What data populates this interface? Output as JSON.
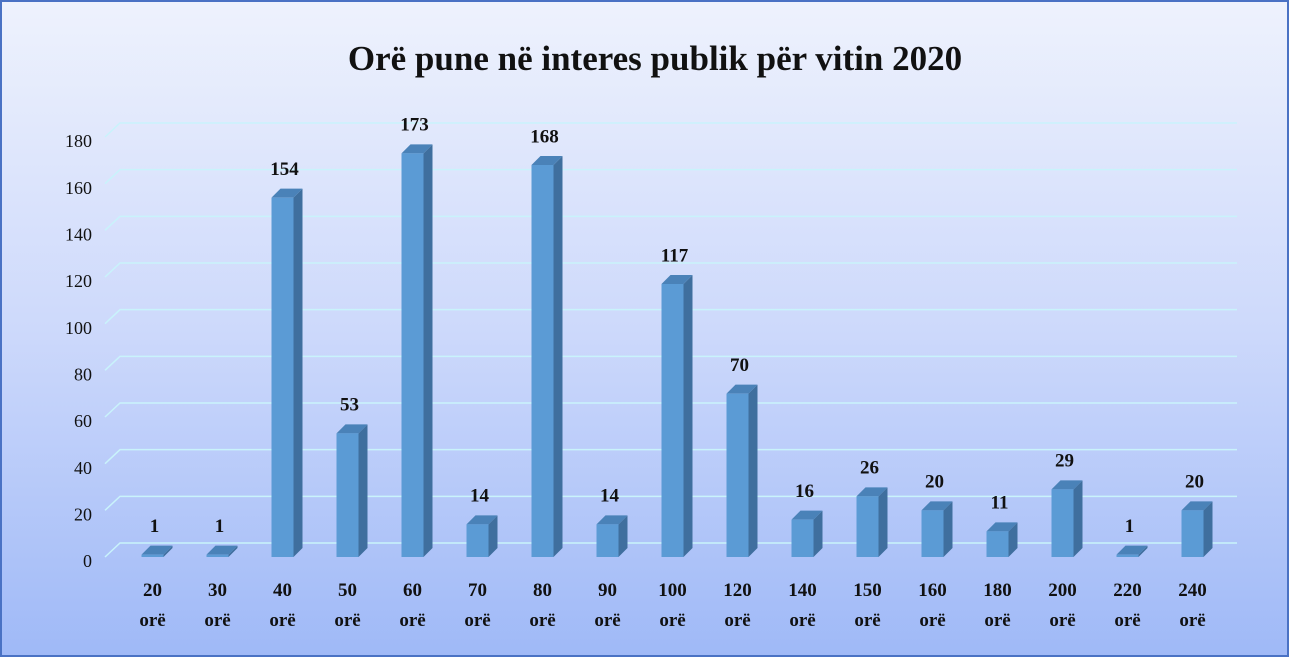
{
  "chart_data": {
    "type": "bar",
    "title": "Orë pune në interes publik për vitin 2020",
    "categories": [
      "20 orë",
      "30 orë",
      "40 orë",
      "50 orë",
      "60 orë",
      "70 orë",
      "80 orë",
      "90 orë",
      "100 orë",
      "120 orë",
      "140 orë",
      "150 orë",
      "160 orë",
      "180 orë",
      "200 orë",
      "220 orë",
      "240 orë"
    ],
    "values": [
      1,
      1,
      154,
      53,
      173,
      14,
      168,
      14,
      117,
      70,
      16,
      26,
      20,
      11,
      29,
      1,
      20
    ],
    "color": "#5b9bd5",
    "ylim": [
      0,
      180
    ],
    "yticks": [
      0,
      20,
      40,
      60,
      80,
      100,
      120,
      140,
      160,
      180
    ],
    "grid": true
  }
}
